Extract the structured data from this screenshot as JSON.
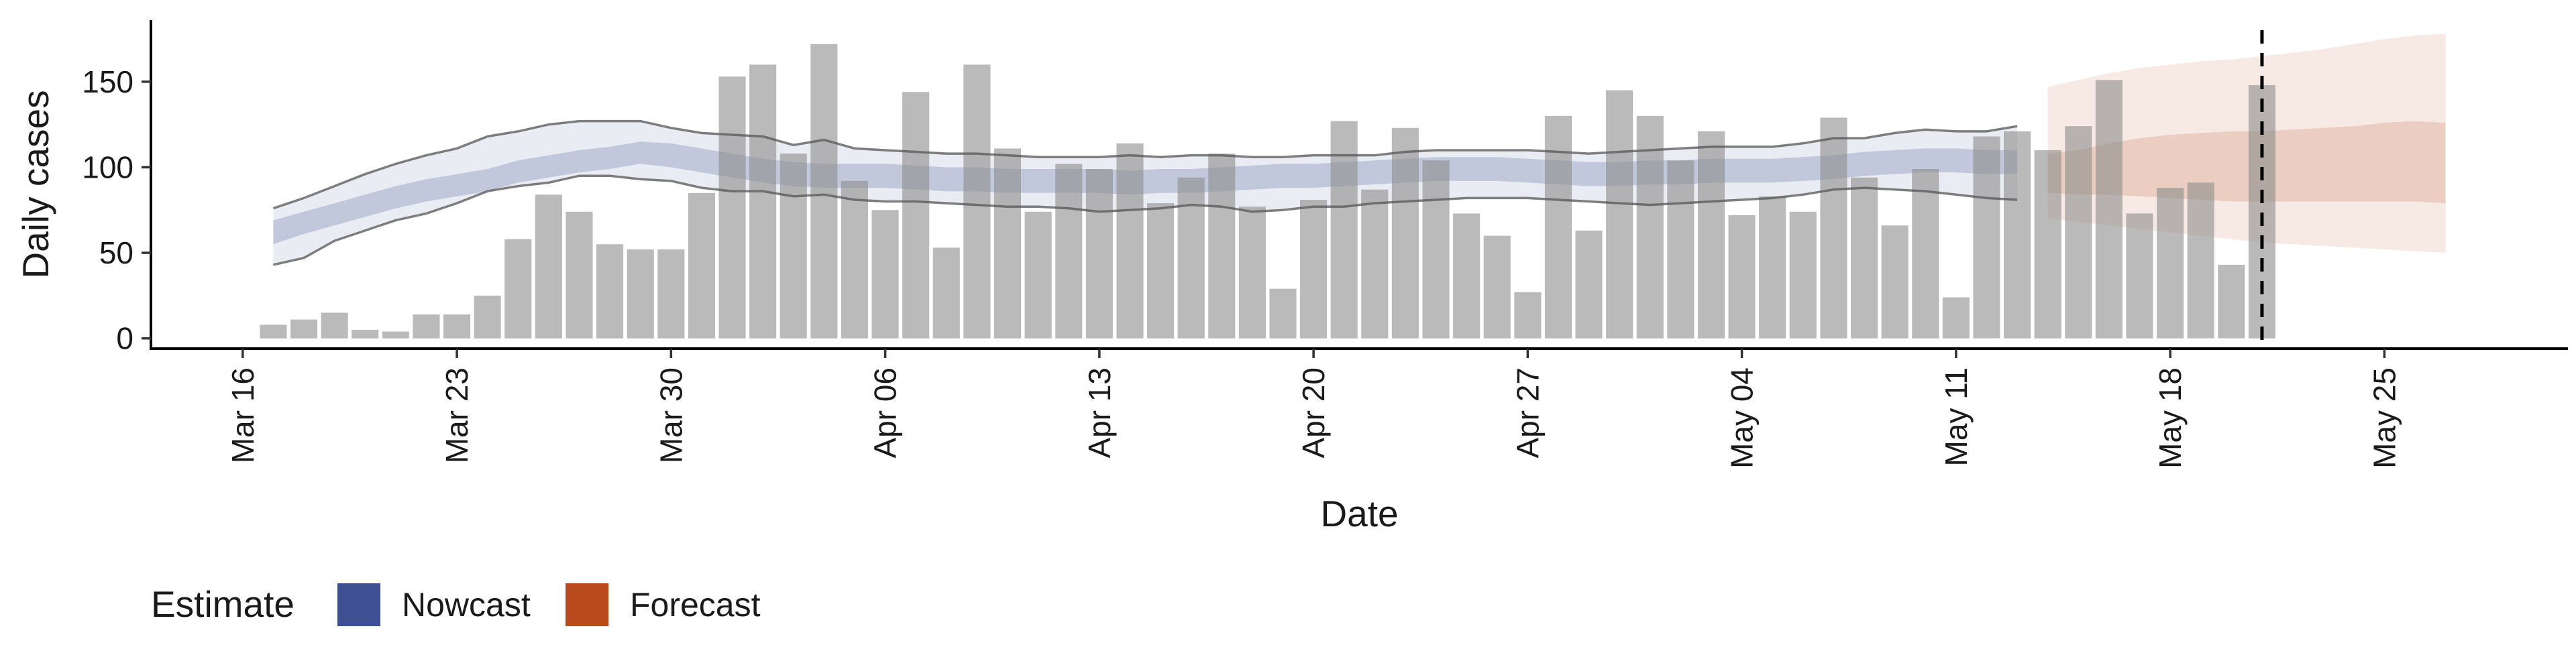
{
  "chart_data": {
    "type": "bar",
    "xlabel": "Date",
    "ylabel": "Daily cases",
    "ylim": [
      -6,
      186
    ],
    "y_ticks": [
      0,
      50,
      100,
      150
    ],
    "x_ticks": [
      "Mar 16",
      "Mar 23",
      "Mar 30",
      "Apr 06",
      "Apr 13",
      "Apr 20",
      "Apr 27",
      "May 04",
      "May 11",
      "May 18",
      "May 25"
    ],
    "x_tick_day_offsets": [
      0,
      7,
      14,
      21,
      28,
      35,
      42,
      49,
      56,
      63,
      70
    ],
    "x_axis_day_range": [
      -3,
      76
    ],
    "bars_start_date": "2020-03-17",
    "bars": [
      8,
      11,
      15,
      5,
      4,
      14,
      14,
      25,
      58,
      84,
      74,
      55,
      52,
      52,
      85,
      153,
      160,
      108,
      172,
      92,
      75,
      144,
      53,
      160,
      111,
      74,
      102,
      99,
      114,
      79,
      94,
      108,
      77,
      29,
      81,
      127,
      87,
      123,
      104,
      73,
      60,
      27,
      130,
      63,
      145,
      130,
      104,
      121,
      72,
      83,
      74,
      129,
      94,
      66,
      99,
      24,
      118,
      121,
      110,
      124,
      151,
      73,
      88,
      91,
      43,
      148
    ],
    "forecast_cutoff_date": "2020-05-21",
    "series": [
      {
        "name": "Nowcast",
        "color": "#35478C",
        "start_date": "2020-03-17",
        "median": [
          62,
          67,
          72,
          77,
          82,
          86,
          89,
          92,
          97,
          100,
          103,
          105,
          108,
          107,
          104,
          101,
          98,
          96,
          95,
          95,
          95,
          94,
          93,
          93,
          92,
          92,
          92,
          92,
          91,
          92,
          92,
          93,
          94,
          95,
          95,
          96,
          97,
          98,
          99,
          99,
          99,
          98,
          97,
          96,
          96,
          97,
          97,
          98,
          98,
          98,
          99,
          100,
          102,
          103,
          104,
          104,
          103,
          103
        ],
        "inner_lower": [
          55,
          61,
          66,
          71,
          76,
          80,
          83,
          86,
          91,
          94,
          97,
          99,
          102,
          100,
          97,
          94,
          91,
          89,
          88,
          88,
          88,
          87,
          86,
          86,
          85,
          85,
          85,
          85,
          84,
          85,
          85,
          86,
          87,
          88,
          88,
          89,
          90,
          91,
          92,
          92,
          92,
          91,
          90,
          89,
          89,
          90,
          90,
          91,
          91,
          91,
          92,
          93,
          95,
          96,
          97,
          97,
          96,
          96
        ],
        "inner_upper": [
          69,
          74,
          79,
          84,
          89,
          93,
          96,
          99,
          104,
          107,
          110,
          112,
          115,
          114,
          111,
          108,
          105,
          103,
          102,
          102,
          102,
          101,
          100,
          100,
          99,
          99,
          99,
          99,
          98,
          99,
          99,
          100,
          101,
          102,
          102,
          103,
          104,
          105,
          106,
          106,
          106,
          105,
          104,
          103,
          103,
          104,
          104,
          105,
          105,
          105,
          106,
          107,
          109,
          110,
          111,
          111,
          110,
          110
        ],
        "outer_lower": [
          43,
          47,
          57,
          63,
          69,
          73,
          79,
          86,
          89,
          91,
          95,
          95,
          93,
          92,
          88,
          86,
          86,
          83,
          84,
          81,
          80,
          80,
          79,
          78,
          77,
          77,
          76,
          74,
          75,
          76,
          78,
          77,
          74,
          75,
          77,
          77,
          79,
          80,
          81,
          82,
          82,
          82,
          81,
          80,
          79,
          78,
          79,
          80,
          81,
          82,
          84,
          87,
          88,
          87,
          86,
          84,
          82,
          81
        ],
        "outer_upper": [
          76,
          82,
          89,
          96,
          102,
          107,
          111,
          118,
          121,
          125,
          127,
          127,
          127,
          123,
          120,
          119,
          118,
          113,
          116,
          111,
          110,
          109,
          108,
          108,
          107,
          106,
          106,
          106,
          107,
          106,
          107,
          107,
          106,
          106,
          107,
          107,
          107,
          109,
          110,
          110,
          110,
          110,
          109,
          108,
          109,
          110,
          111,
          112,
          112,
          112,
          114,
          117,
          117,
          120,
          122,
          121,
          121,
          124
        ]
      },
      {
        "name": "Forecast",
        "color": "#B5400F",
        "start_date": "2020-05-14",
        "median": [
          103,
          104,
          105,
          105,
          104,
          103,
          102,
          103,
          104,
          106,
          107,
          109,
          110,
          110
        ],
        "inner_lower": [
          85,
          84,
          84,
          83,
          82,
          81,
          80,
          80,
          80,
          80,
          80,
          80,
          80,
          79
        ],
        "inner_upper": [
          108,
          110,
          114,
          117,
          119,
          120,
          121,
          121,
          122,
          123,
          124,
          126,
          127,
          126
        ],
        "outer_lower": [
          70,
          68,
          66,
          64,
          62,
          60,
          58,
          56,
          55,
          54,
          53,
          52,
          51,
          50
        ],
        "outer_upper": [
          147,
          151,
          155,
          158,
          160,
          162,
          163,
          165,
          167,
          169,
          172,
          175,
          177,
          178
        ]
      }
    ],
    "legend": {
      "title": "Estimate",
      "placement": "bottom-left",
      "items": [
        {
          "label": "Nowcast",
          "color": "#35478C"
        },
        {
          "label": "Forecast",
          "color": "#B5400F"
        }
      ]
    }
  }
}
